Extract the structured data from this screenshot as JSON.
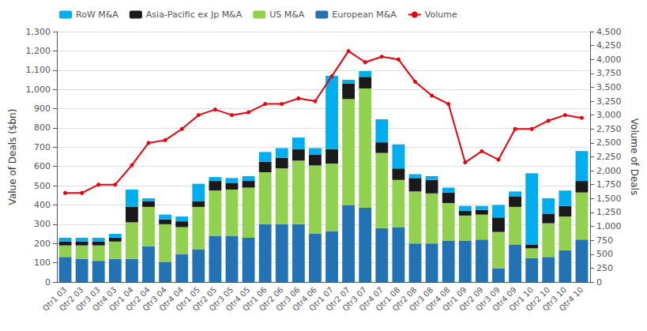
{
  "chart_data": {
    "type": "bar",
    "stacked": true,
    "categories": [
      "Qtr1 03",
      "Qtr2 03",
      "Qtr3 03",
      "Qtr4 03",
      "Qtr1 04",
      "Qtr2 04",
      "Qtr3 04",
      "Qtr4 04",
      "Qtr1 05",
      "Qtr2 05",
      "Qtr3 05",
      "Qtr4 05",
      "Qtr1 06",
      "Qtr2 06",
      "Qtr3 06",
      "Qtr4 06",
      "Qtr1 07",
      "Qtr2 07",
      "Qtr3 07",
      "Qtr4 07",
      "Qtr1 08",
      "Qtr2 08",
      "Qtr3 08",
      "Qtr4 08",
      "Qtr1 09",
      "Qtr2 09",
      "Qtr3 09",
      "Qtr4 09",
      "Qtr1 10",
      "Qtr2 10",
      "Qtr3 10",
      "Qtr4 10"
    ],
    "series": [
      {
        "name": "European M&A",
        "type": "bar",
        "color": "#2272B4",
        "values": [
          130,
          120,
          110,
          120,
          120,
          185,
          105,
          145,
          170,
          240,
          240,
          230,
          300,
          300,
          300,
          250,
          265,
          400,
          385,
          280,
          285,
          200,
          200,
          215,
          215,
          220,
          70,
          195,
          125,
          130,
          165,
          220
        ]
      },
      {
        "name": "US M&A",
        "type": "bar",
        "color": "#92D050",
        "values": [
          60,
          70,
          80,
          90,
          190,
          205,
          195,
          140,
          220,
          235,
          240,
          260,
          270,
          290,
          330,
          355,
          350,
          550,
          620,
          390,
          245,
          270,
          260,
          195,
          130,
          130,
          190,
          195,
          50,
          175,
          175,
          245
        ]
      },
      {
        "name": "Asia-Pacific ex Jp M&A",
        "type": "bar",
        "color": "#1A1A1A",
        "values": [
          20,
          20,
          20,
          20,
          80,
          30,
          25,
          30,
          30,
          50,
          35,
          35,
          55,
          55,
          60,
          55,
          75,
          80,
          60,
          55,
          60,
          70,
          70,
          55,
          25,
          25,
          75,
          55,
          20,
          50,
          55,
          60
        ]
      },
      {
        "name": "RoW M&A",
        "type": "bar",
        "color": "#00AEEF",
        "values": [
          20,
          20,
          20,
          20,
          90,
          15,
          25,
          25,
          90,
          20,
          25,
          25,
          50,
          50,
          60,
          35,
          380,
          20,
          30,
          120,
          125,
          20,
          20,
          25,
          25,
          20,
          65,
          25,
          370,
          80,
          80,
          155
        ]
      },
      {
        "name": "Volume",
        "type": "line",
        "axis": "y2",
        "marker": "circle",
        "color": "#E8000A",
        "values": [
          1600,
          1600,
          1750,
          1750,
          2100,
          2500,
          2550,
          2750,
          3000,
          3100,
          3000,
          3050,
          3200,
          3200,
          3300,
          3250,
          3700,
          4150,
          3950,
          4050,
          4000,
          3600,
          3350,
          3200,
          2150,
          2350,
          2200,
          2750,
          2750,
          2900,
          3000,
          2950
        ]
      }
    ],
    "ylabel": "Value of Deals ($bn)",
    "y2label": "Volume of Deals",
    "ylim": [
      0,
      1300
    ],
    "yticks": [
      0,
      100,
      200,
      300,
      400,
      500,
      600,
      700,
      800,
      900,
      {
        "value": 1000,
        "label": "1,000"
      },
      {
        "value": 1100,
        "label": "1,100"
      },
      {
        "value": 1200,
        "label": "1,200"
      },
      {
        "value": 1300,
        "label": "1,300"
      }
    ],
    "y2lim": [
      0,
      4500
    ],
    "y2ticks": [
      0,
      250,
      500,
      750,
      {
        "value": 1000,
        "label": "1,000"
      },
      {
        "value": 1250,
        "label": "1,250"
      },
      {
        "value": 1500,
        "label": "1,500"
      },
      {
        "value": 1750,
        "label": "1,750"
      },
      {
        "value": 2000,
        "label": "2,000"
      },
      {
        "value": 2250,
        "label": "2,250"
      },
      {
        "value": 2500,
        "label": "2,500"
      },
      {
        "value": 2750,
        "label": "2,750"
      },
      {
        "value": 3000,
        "label": "3,000"
      },
      {
        "value": 3250,
        "label": "3,250"
      },
      {
        "value": 3500,
        "label": "3,500"
      },
      {
        "value": 3750,
        "label": "3,750"
      },
      {
        "value": 4000,
        "label": "4,000"
      },
      {
        "value": 4250,
        "label": "4,250"
      },
      {
        "value": 4500,
        "label": "4,500"
      }
    ],
    "grid": true,
    "legend": "upper left"
  }
}
